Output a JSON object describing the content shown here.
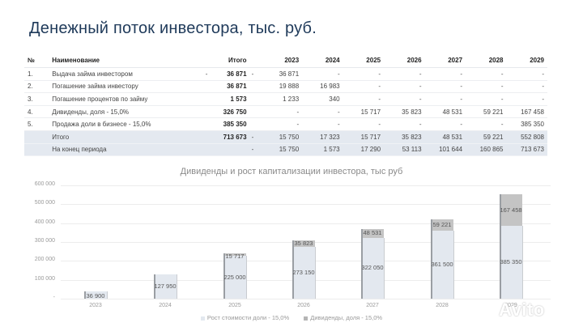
{
  "title": "Денежный поток инвестора, тыс. руб.",
  "table": {
    "headers": {
      "num": "№",
      "name": "Наименование",
      "total": "Итого",
      "years": [
        "2023",
        "2024",
        "2025",
        "2026",
        "2027",
        "2028",
        "2029"
      ]
    },
    "rows": [
      {
        "num": "1.",
        "name": "Выдача займа инвестором",
        "mark": "-",
        "total": "36 871",
        "tmark": "-",
        "values": [
          "36 871",
          "-",
          "-",
          "-",
          "-",
          "-",
          "-"
        ]
      },
      {
        "num": "2.",
        "name": "Погашение займа инвестору",
        "mark": "",
        "total": "36 871",
        "tmark": "",
        "values": [
          "19 888",
          "16 983",
          "-",
          "-",
          "-",
          "-",
          "-"
        ]
      },
      {
        "num": "3.",
        "name": "Погашение процентов по займу",
        "mark": "",
        "total": "1 573",
        "tmark": "",
        "values": [
          "1 233",
          "340",
          "-",
          "-",
          "-",
          "-",
          "-"
        ]
      },
      {
        "num": "4.",
        "name": "Дивиденды, доля - 15,0%",
        "mark": "",
        "total": "326 750",
        "tmark": "",
        "values": [
          "-",
          "-",
          "15 717",
          "35 823",
          "48 531",
          "59 221",
          "167 458"
        ]
      },
      {
        "num": "5.",
        "name": "Продажа доли в бизнесе - 15,0%",
        "mark": "",
        "total": "385 350",
        "tmark": "",
        "values": [
          "-",
          "-",
          "-",
          "-",
          "-",
          "-",
          "385 350"
        ]
      },
      {
        "num": "",
        "name": "Итого",
        "mark": "",
        "total": "713 673",
        "tmark": "-",
        "values": [
          "15 750",
          "17 323",
          "15 717",
          "35 823",
          "48 531",
          "59 221",
          "552 808"
        ]
      },
      {
        "num": "",
        "name": "На конец периода",
        "mark": "",
        "total": "",
        "tmark": "-",
        "values": [
          "15 750",
          "1 573",
          "17 290",
          "53 113",
          "101 644",
          "160 865",
          "713 673"
        ]
      }
    ]
  },
  "chart_data": {
    "type": "bar",
    "stacked": true,
    "title": "Дивиденды и рост капитализации инвестора, тыс руб",
    "categories": [
      "2023",
      "2024",
      "2025",
      "2026",
      "2027",
      "2028",
      "2029"
    ],
    "series": [
      {
        "name": "Рост стоимости доли - 15,0%",
        "color": "#e3e8ef",
        "values": [
          36900,
          127950,
          225000,
          273150,
          322050,
          361500,
          385350
        ],
        "labels": [
          "36 900",
          "127 950",
          "225 000",
          "273 150",
          "322 050",
          "361 500",
          "385 350"
        ]
      },
      {
        "name": "Дивиденды, доля - 15,0%",
        "color": "#c4c4c4",
        "values": [
          0,
          0,
          15717,
          35823,
          48531,
          59221,
          167458
        ],
        "labels": [
          "",
          "",
          "15 717",
          "35 823",
          "48 531",
          "59 221",
          "167 458"
        ]
      }
    ],
    "yticks": [
      "-",
      "100 000",
      "200 000",
      "300 000",
      "400 000",
      "500 000",
      "600 000"
    ],
    "ylim": [
      0,
      600000
    ],
    "grid": true,
    "legend_position": "bottom",
    "xlabel": "",
    "ylabel": ""
  },
  "watermark": "Avito"
}
